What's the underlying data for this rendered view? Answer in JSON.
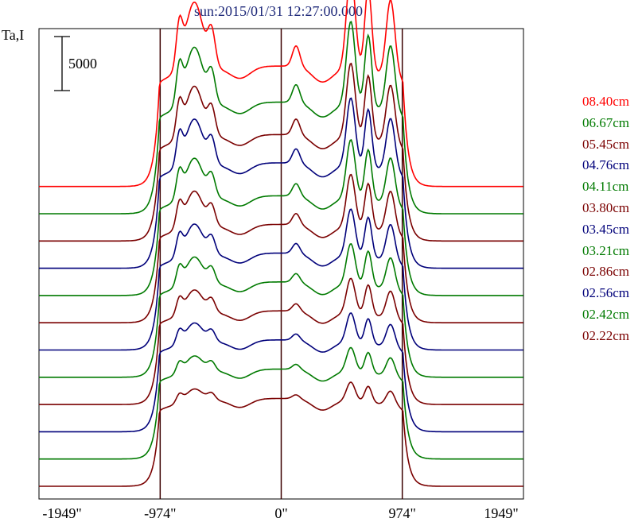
{
  "chart_data": {
    "type": "line",
    "title": "sun:2015/01/31 12:27:00.000",
    "ylabel": "Ta,I",
    "scale_bar_label": "5000",
    "xlabel": "",
    "xlim": [
      -1949,
      1949
    ],
    "x_tick_labels": [
      "-1949\"",
      "-974\"",
      "0\"",
      "974\"",
      "1949\""
    ],
    "x_tick_values": [
      -1949,
      -974,
      0,
      974,
      1949
    ],
    "vertical_lines": [
      -974,
      0,
      974
    ],
    "scale_bar": 5000,
    "legend_position": "right",
    "series": [
      {
        "name": "08.40cm",
        "color": "#ff0000",
        "offset": 12,
        "peak": 30000
      },
      {
        "name": "06.67cm",
        "color": "#007a00",
        "offset": 11,
        "peak": 27000
      },
      {
        "name": "05.45cm",
        "color": "#7a0000",
        "offset": 10,
        "peak": 25000
      },
      {
        "name": "04.76cm",
        "color": "#00007a",
        "offset": 9,
        "peak": 24000
      },
      {
        "name": "04.11cm",
        "color": "#007a00",
        "offset": 8,
        "peak": 22000
      },
      {
        "name": "03.80cm",
        "color": "#7a0000",
        "offset": 7,
        "peak": 21000
      },
      {
        "name": "03.45cm",
        "color": "#00007a",
        "offset": 6,
        "peak": 20000
      },
      {
        "name": "03.21cm",
        "color": "#007a00",
        "offset": 5,
        "peak": 19000
      },
      {
        "name": "02.86cm",
        "color": "#7a0000",
        "offset": 4,
        "peak": 18000
      },
      {
        "name": "02.56cm",
        "color": "#00007a",
        "offset": 3,
        "peak": 17000
      },
      {
        "name": "02.42cm",
        "color": "#007a00",
        "offset": 2,
        "peak": 16000
      },
      {
        "name": "02.22cm",
        "color": "#7a0000",
        "offset": 1,
        "peak": 15000
      }
    ]
  }
}
